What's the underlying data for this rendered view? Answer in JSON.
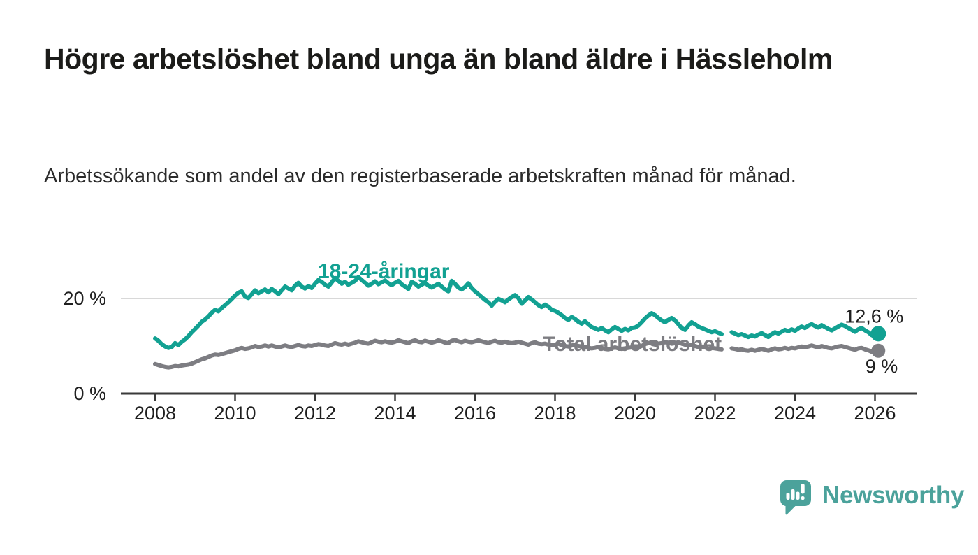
{
  "header": {
    "title": "Högre arbetslöshet bland unga än bland äldre i Hässleholm",
    "subtitle": "Arbetssökande som andel av den registerbaserade arbetskraften månad för månad."
  },
  "footer": {
    "brand": "Newsworthy"
  },
  "colors": {
    "young_line": "#12a192",
    "total_line": "#7d7d82",
    "grid": "#d8d8d8",
    "axis": "#3a3a3a",
    "text": "#1f1f1f",
    "brand": "#4ba29b"
  },
  "chart_data": {
    "type": "line",
    "title": "Högre arbetslöshet bland unga än bland äldre i Hässleholm",
    "subtitle": "Arbetssökande som andel av den registerbaserade arbetskraften månad för månad.",
    "unit": "%",
    "x_start_year": 2008,
    "x_step_months": 1,
    "x_ticks": [
      2008,
      2010,
      2012,
      2014,
      2016,
      2018,
      2020,
      2022,
      2024,
      2026
    ],
    "ylim": [
      0,
      27
    ],
    "y_ticks": [
      {
        "value": 0,
        "label": "0 %"
      },
      {
        "value": 20,
        "label": "20 %"
      }
    ],
    "grid": "horizontal-at-20-only",
    "legend_position": "inline-labels-on-lines",
    "series": [
      {
        "name": "18-24-åringar",
        "color": "#12a192",
        "end_label": "12,6 %",
        "end_value": 12.6,
        "values": [
          11.6,
          11.1,
          10.4,
          9.9,
          9.6,
          9.8,
          10.6,
          10.2,
          10.9,
          11.4,
          12.1,
          12.9,
          13.6,
          14.3,
          15.1,
          15.6,
          16.2,
          17.0,
          17.6,
          17.3,
          18.0,
          18.6,
          19.2,
          19.9,
          20.6,
          21.2,
          21.5,
          20.4,
          20.1,
          20.9,
          21.7,
          21.1,
          21.5,
          21.9,
          21.3,
          22.0,
          21.5,
          20.9,
          21.7,
          22.5,
          22.1,
          21.7,
          22.7,
          23.3,
          22.5,
          22.1,
          22.6,
          22.2,
          23.1,
          23.9,
          23.5,
          22.9,
          22.5,
          23.4,
          24.3,
          23.7,
          23.1,
          23.5,
          22.9,
          23.3,
          23.7,
          24.5,
          23.9,
          23.3,
          22.7,
          23.1,
          23.6,
          23.0,
          23.4,
          23.8,
          23.2,
          22.8,
          23.3,
          23.7,
          23.0,
          22.5,
          22.0,
          23.5,
          23.1,
          22.5,
          22.9,
          23.3,
          22.7,
          22.3,
          22.7,
          23.1,
          22.5,
          21.9,
          21.5,
          23.7,
          23.1,
          22.3,
          21.9,
          22.4,
          23.2,
          22.2,
          21.5,
          20.9,
          20.3,
          19.7,
          19.2,
          18.5,
          19.3,
          19.9,
          19.6,
          19.2,
          19.8,
          20.3,
          20.7,
          20.1,
          18.9,
          19.6,
          20.3,
          19.8,
          19.2,
          18.6,
          18.2,
          18.7,
          18.3,
          17.6,
          17.4,
          17.0,
          16.5,
          15.9,
          15.5,
          16.1,
          15.7,
          15.1,
          14.7,
          15.2,
          14.6,
          14.0,
          13.7,
          13.4,
          13.8,
          13.3,
          12.9,
          13.5,
          14.0,
          13.6,
          13.2,
          13.6,
          13.3,
          13.8,
          13.9,
          14.3,
          15.0,
          15.8,
          16.4,
          16.9,
          16.5,
          15.9,
          15.4,
          15.0,
          15.5,
          15.9,
          15.4,
          14.6,
          13.8,
          13.4,
          14.3,
          15.0,
          14.6,
          14.1,
          13.8,
          13.5,
          13.2,
          12.9,
          13.1,
          12.8,
          12.5,
          null,
          null,
          12.9,
          12.6,
          12.3,
          12.5,
          12.2,
          11.9,
          12.2,
          12.0,
          12.4,
          12.7,
          12.3,
          11.9,
          12.5,
          12.9,
          12.6,
          13.0,
          13.4,
          13.1,
          13.5,
          13.2,
          13.7,
          14.1,
          13.8,
          14.3,
          14.6,
          14.2,
          13.9,
          14.4,
          14.0,
          13.6,
          13.3,
          13.7,
          14.1,
          14.5,
          14.2,
          13.8,
          13.4,
          13.0,
          13.5,
          13.8,
          13.3,
          12.9,
          12.3,
          12.1,
          12.6
        ]
      },
      {
        "name": "Total arbetslöshet",
        "color": "#7d7d82",
        "end_label": "9 %",
        "end_value": 9.0,
        "values": [
          6.2,
          6.0,
          5.8,
          5.6,
          5.5,
          5.6,
          5.8,
          5.7,
          5.9,
          6.0,
          6.1,
          6.3,
          6.6,
          6.9,
          7.2,
          7.4,
          7.7,
          8.0,
          8.2,
          8.1,
          8.3,
          8.5,
          8.7,
          8.9,
          9.1,
          9.4,
          9.6,
          9.4,
          9.5,
          9.7,
          10.0,
          9.8,
          9.9,
          10.1,
          9.9,
          10.1,
          9.9,
          9.7,
          9.9,
          10.1,
          9.9,
          9.8,
          10.0,
          10.2,
          10.0,
          9.9,
          10.1,
          10.0,
          10.2,
          10.4,
          10.3,
          10.1,
          10.0,
          10.3,
          10.6,
          10.4,
          10.3,
          10.5,
          10.3,
          10.5,
          10.7,
          11.0,
          10.8,
          10.6,
          10.5,
          10.8,
          11.1,
          10.9,
          10.8,
          11.0,
          10.8,
          10.7,
          10.9,
          11.2,
          11.0,
          10.8,
          10.6,
          11.0,
          11.2,
          10.9,
          10.8,
          11.1,
          10.9,
          10.7,
          10.9,
          11.2,
          11.0,
          10.7,
          10.6,
          11.1,
          11.3,
          11.0,
          10.8,
          11.1,
          10.9,
          10.8,
          11.0,
          11.2,
          11.0,
          10.8,
          10.6,
          10.9,
          11.1,
          10.8,
          10.7,
          10.9,
          10.7,
          10.6,
          10.7,
          10.9,
          10.7,
          10.5,
          10.3,
          10.6,
          10.8,
          10.5,
          10.4,
          10.5,
          10.3,
          10.2,
          10.3,
          10.5,
          10.2,
          10.0,
          9.9,
          10.1,
          10.3,
          10.0,
          9.9,
          9.8,
          9.6,
          9.5,
          9.6,
          9.8,
          9.6,
          9.4,
          9.3,
          9.5,
          9.7,
          9.5,
          9.4,
          9.5,
          9.6,
          9.7,
          9.8,
          9.7,
          10.0,
          10.4,
          10.6,
          10.8,
          10.7,
          10.5,
          10.6,
          10.8,
          10.7,
          10.5,
          10.6,
          10.8,
          10.5,
          10.3,
          10.1,
          10.2,
          10.0,
          9.8,
          9.9,
          9.7,
          9.5,
          9.6,
          9.5,
          9.4,
          9.3,
          null,
          null,
          9.5,
          9.4,
          9.2,
          9.3,
          9.1,
          9.0,
          9.2,
          9.0,
          9.2,
          9.4,
          9.2,
          9.0,
          9.3,
          9.5,
          9.3,
          9.4,
          9.6,
          9.4,
          9.6,
          9.5,
          9.7,
          9.9,
          9.7,
          9.9,
          10.1,
          9.9,
          9.7,
          10.0,
          9.8,
          9.6,
          9.5,
          9.7,
          9.9,
          10.0,
          9.8,
          9.6,
          9.4,
          9.2,
          9.5,
          9.6,
          9.3,
          9.1,
          8.8,
          8.7,
          9.0
        ]
      }
    ]
  }
}
